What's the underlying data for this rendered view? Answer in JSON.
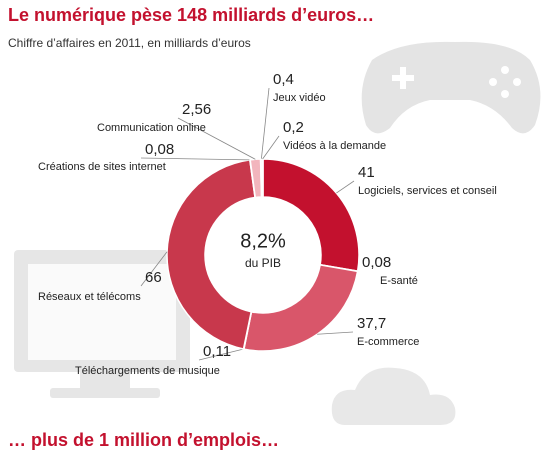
{
  "chart_data": {
    "type": "donut",
    "title": "Le numérique pèse 148 milliards d’euros…",
    "subtitle": "Chiffre d’affaires en 2011, en milliards d’euros",
    "center_label": [
      "8,2%",
      "du PIB"
    ],
    "footer": "… plus de 1 million d’emplois…",
    "categories": [
      "Logiciels, services et conseil",
      "E-santé",
      "E-commerce",
      "Téléchargements de musique",
      "Réseaux et télécoms",
      "Créations de sites internet",
      "Communication online",
      "Jeux vidéo",
      "Vidéos à la demande"
    ],
    "values": [
      41,
      0.08,
      37.7,
      0.11,
      66,
      0.08,
      2.56,
      0.4,
      0.2
    ],
    "value_labels": [
      "41",
      "0,08",
      "37,7",
      "0,11",
      "66",
      "0,08",
      "2,56",
      "0,4",
      "0,2"
    ],
    "colors": [
      "#c3112e",
      "#c3112e",
      "#d9566a",
      "#c8384c",
      "#c8384c",
      "#e98090",
      "#f2b5bd",
      "#f7d3d8",
      "#f7d3d8"
    ]
  }
}
